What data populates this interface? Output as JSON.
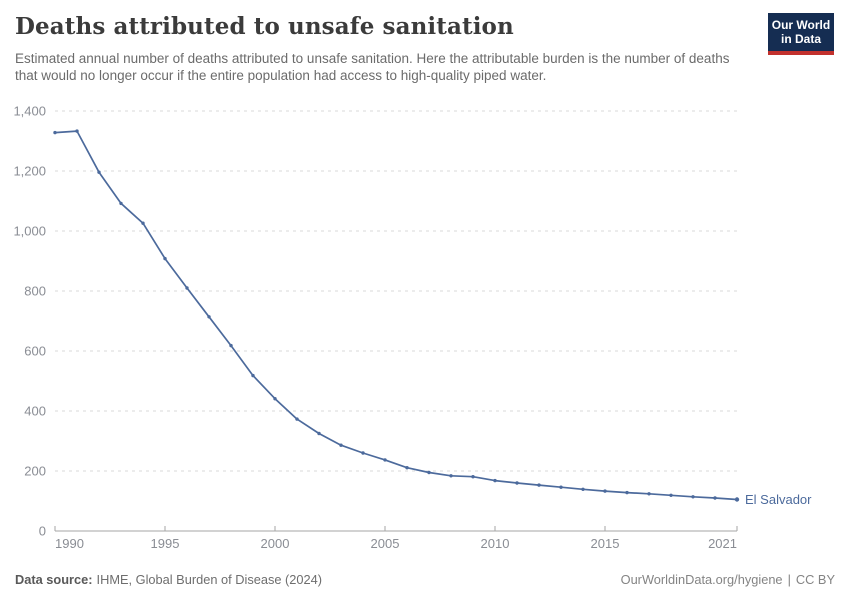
{
  "header": {
    "title": "Deaths attributed to unsafe sanitation",
    "subtitle": "Estimated annual number of deaths attributed to unsafe sanitation. Here the attributable burden is the number of deaths that would no longer occur if the entire population had access to high-quality piped water.",
    "logo": {
      "line1": "Our World",
      "line2": "in Data",
      "bg_color": "#152d52",
      "accent_color": "#c2312d"
    }
  },
  "chart_data": {
    "type": "line",
    "title": "Deaths attributed to unsafe sanitation",
    "xlabel": "",
    "ylabel": "",
    "xlim": [
      1990,
      2021
    ],
    "ylim": [
      0,
      1400
    ],
    "x_ticks": [
      1990,
      1995,
      2000,
      2005,
      2010,
      2015,
      2021
    ],
    "y_ticks": [
      0,
      200,
      400,
      600,
      800,
      1000,
      1200,
      1400
    ],
    "grid": true,
    "legend_position": "end-of-line",
    "grid_color": "#dadada",
    "axis_color": "#a5a5a5",
    "tick_label_color": "#8a8d94",
    "x": [
      1990,
      1991,
      1992,
      1993,
      1994,
      1995,
      1996,
      1997,
      1998,
      1999,
      2000,
      2001,
      2002,
      2003,
      2004,
      2005,
      2006,
      2007,
      2008,
      2009,
      2010,
      2011,
      2012,
      2013,
      2014,
      2015,
      2016,
      2017,
      2018,
      2019,
      2020,
      2021
    ],
    "series": [
      {
        "name": "El Salvador",
        "color": "#4c6a9c",
        "values": [
          1328,
          1333,
          1196,
          1092,
          1026,
          908,
          810,
          714,
          618,
          518,
          441,
          373,
          325,
          286,
          260,
          237,
          211,
          195,
          184,
          181,
          168,
          160,
          153,
          146,
          139,
          133,
          128,
          124,
          119,
          114,
          110,
          105
        ]
      }
    ]
  },
  "footer": {
    "source_label": "Data source:",
    "source_value": "IHME, Global Burden of Disease (2024)",
    "url": "OurWorldinData.org/hygiene",
    "separator": "|",
    "license": "CC BY"
  }
}
